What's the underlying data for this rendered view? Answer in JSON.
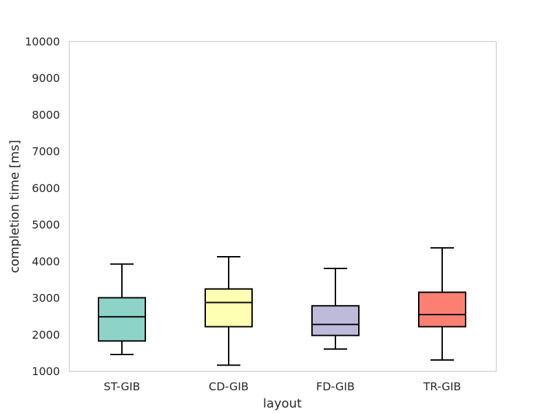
{
  "chart_data": {
    "type": "box",
    "title": "",
    "xlabel": "layout",
    "ylabel": "completion time [ms]",
    "ylim": [
      1000,
      10000
    ],
    "yticks": [
      1000,
      2000,
      3000,
      4000,
      5000,
      6000,
      7000,
      8000,
      9000,
      10000
    ],
    "grid": false,
    "categories": [
      "ST-GIB",
      "CD-GIB",
      "FD-GIB",
      "TR-GIB"
    ],
    "boxes": [
      {
        "category": "ST-GIB",
        "whisker_low": 1450,
        "q1": 1820,
        "median": 2480,
        "q3": 3000,
        "whisker_high": 3920,
        "color": "#8dd3c7"
      },
      {
        "category": "CD-GIB",
        "whisker_low": 1160,
        "q1": 2210,
        "median": 2870,
        "q3": 3240,
        "whisker_high": 4120,
        "color": "#ffffb3"
      },
      {
        "category": "FD-GIB",
        "whisker_low": 1600,
        "q1": 1970,
        "median": 2270,
        "q3": 2780,
        "whisker_high": 3800,
        "color": "#bebada"
      },
      {
        "category": "TR-GIB",
        "whisker_low": 1300,
        "q1": 2210,
        "median": 2540,
        "q3": 3150,
        "whisker_high": 4360,
        "color": "#fb8072"
      }
    ]
  }
}
